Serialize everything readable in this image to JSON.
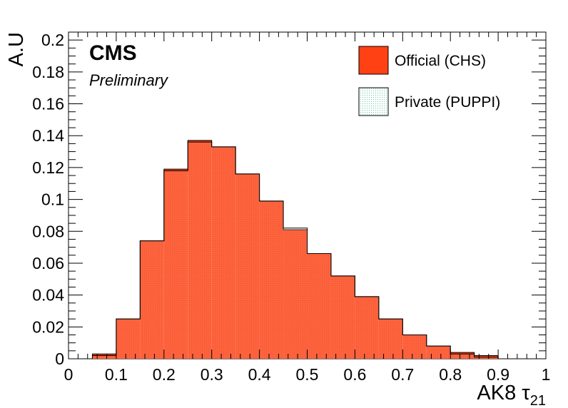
{
  "chart_data": {
    "type": "bar",
    "style": "histogram",
    "experiment_label": "CMS",
    "status_label": "Preliminary",
    "xlabel": "AK8 τ",
    "xlabel_subscript": "21",
    "ylabel": "A.U",
    "xlim": [
      0,
      1
    ],
    "ylim": [
      0,
      0.205
    ],
    "x_ticks": [
      "0",
      "0.1",
      "0.2",
      "0.3",
      "0.4",
      "0.5",
      "0.6",
      "0.7",
      "0.8",
      "0.9",
      "1"
    ],
    "y_ticks": [
      "0",
      "0.02",
      "0.04",
      "0.06",
      "0.08",
      "0.1",
      "0.12",
      "0.14",
      "0.16",
      "0.18",
      "0.2"
    ],
    "grid": false,
    "legend_position": "top-right",
    "bin_edges": [
      0.05,
      0.1,
      0.15,
      0.2,
      0.25,
      0.3,
      0.35,
      0.4,
      0.45,
      0.5,
      0.55,
      0.6,
      0.65,
      0.7,
      0.75,
      0.8,
      0.85,
      0.9
    ],
    "series": [
      {
        "name": "Official (CHS)",
        "color": "#ff4113",
        "values": [
          0.003,
          0.025,
          0.074,
          0.119,
          0.137,
          0.133,
          0.116,
          0.099,
          0.081,
          0.066,
          0.052,
          0.039,
          0.025,
          0.015,
          0.008,
          0.004,
          0.002
        ]
      },
      {
        "name": "Private (PUPPI)",
        "color": "#8fd3c3",
        "pattern": "dotted",
        "values": [
          0.002,
          0.025,
          0.074,
          0.118,
          0.136,
          0.133,
          0.116,
          0.099,
          0.082,
          0.066,
          0.052,
          0.039,
          0.025,
          0.015,
          0.008,
          0.003,
          0.001
        ]
      }
    ]
  }
}
